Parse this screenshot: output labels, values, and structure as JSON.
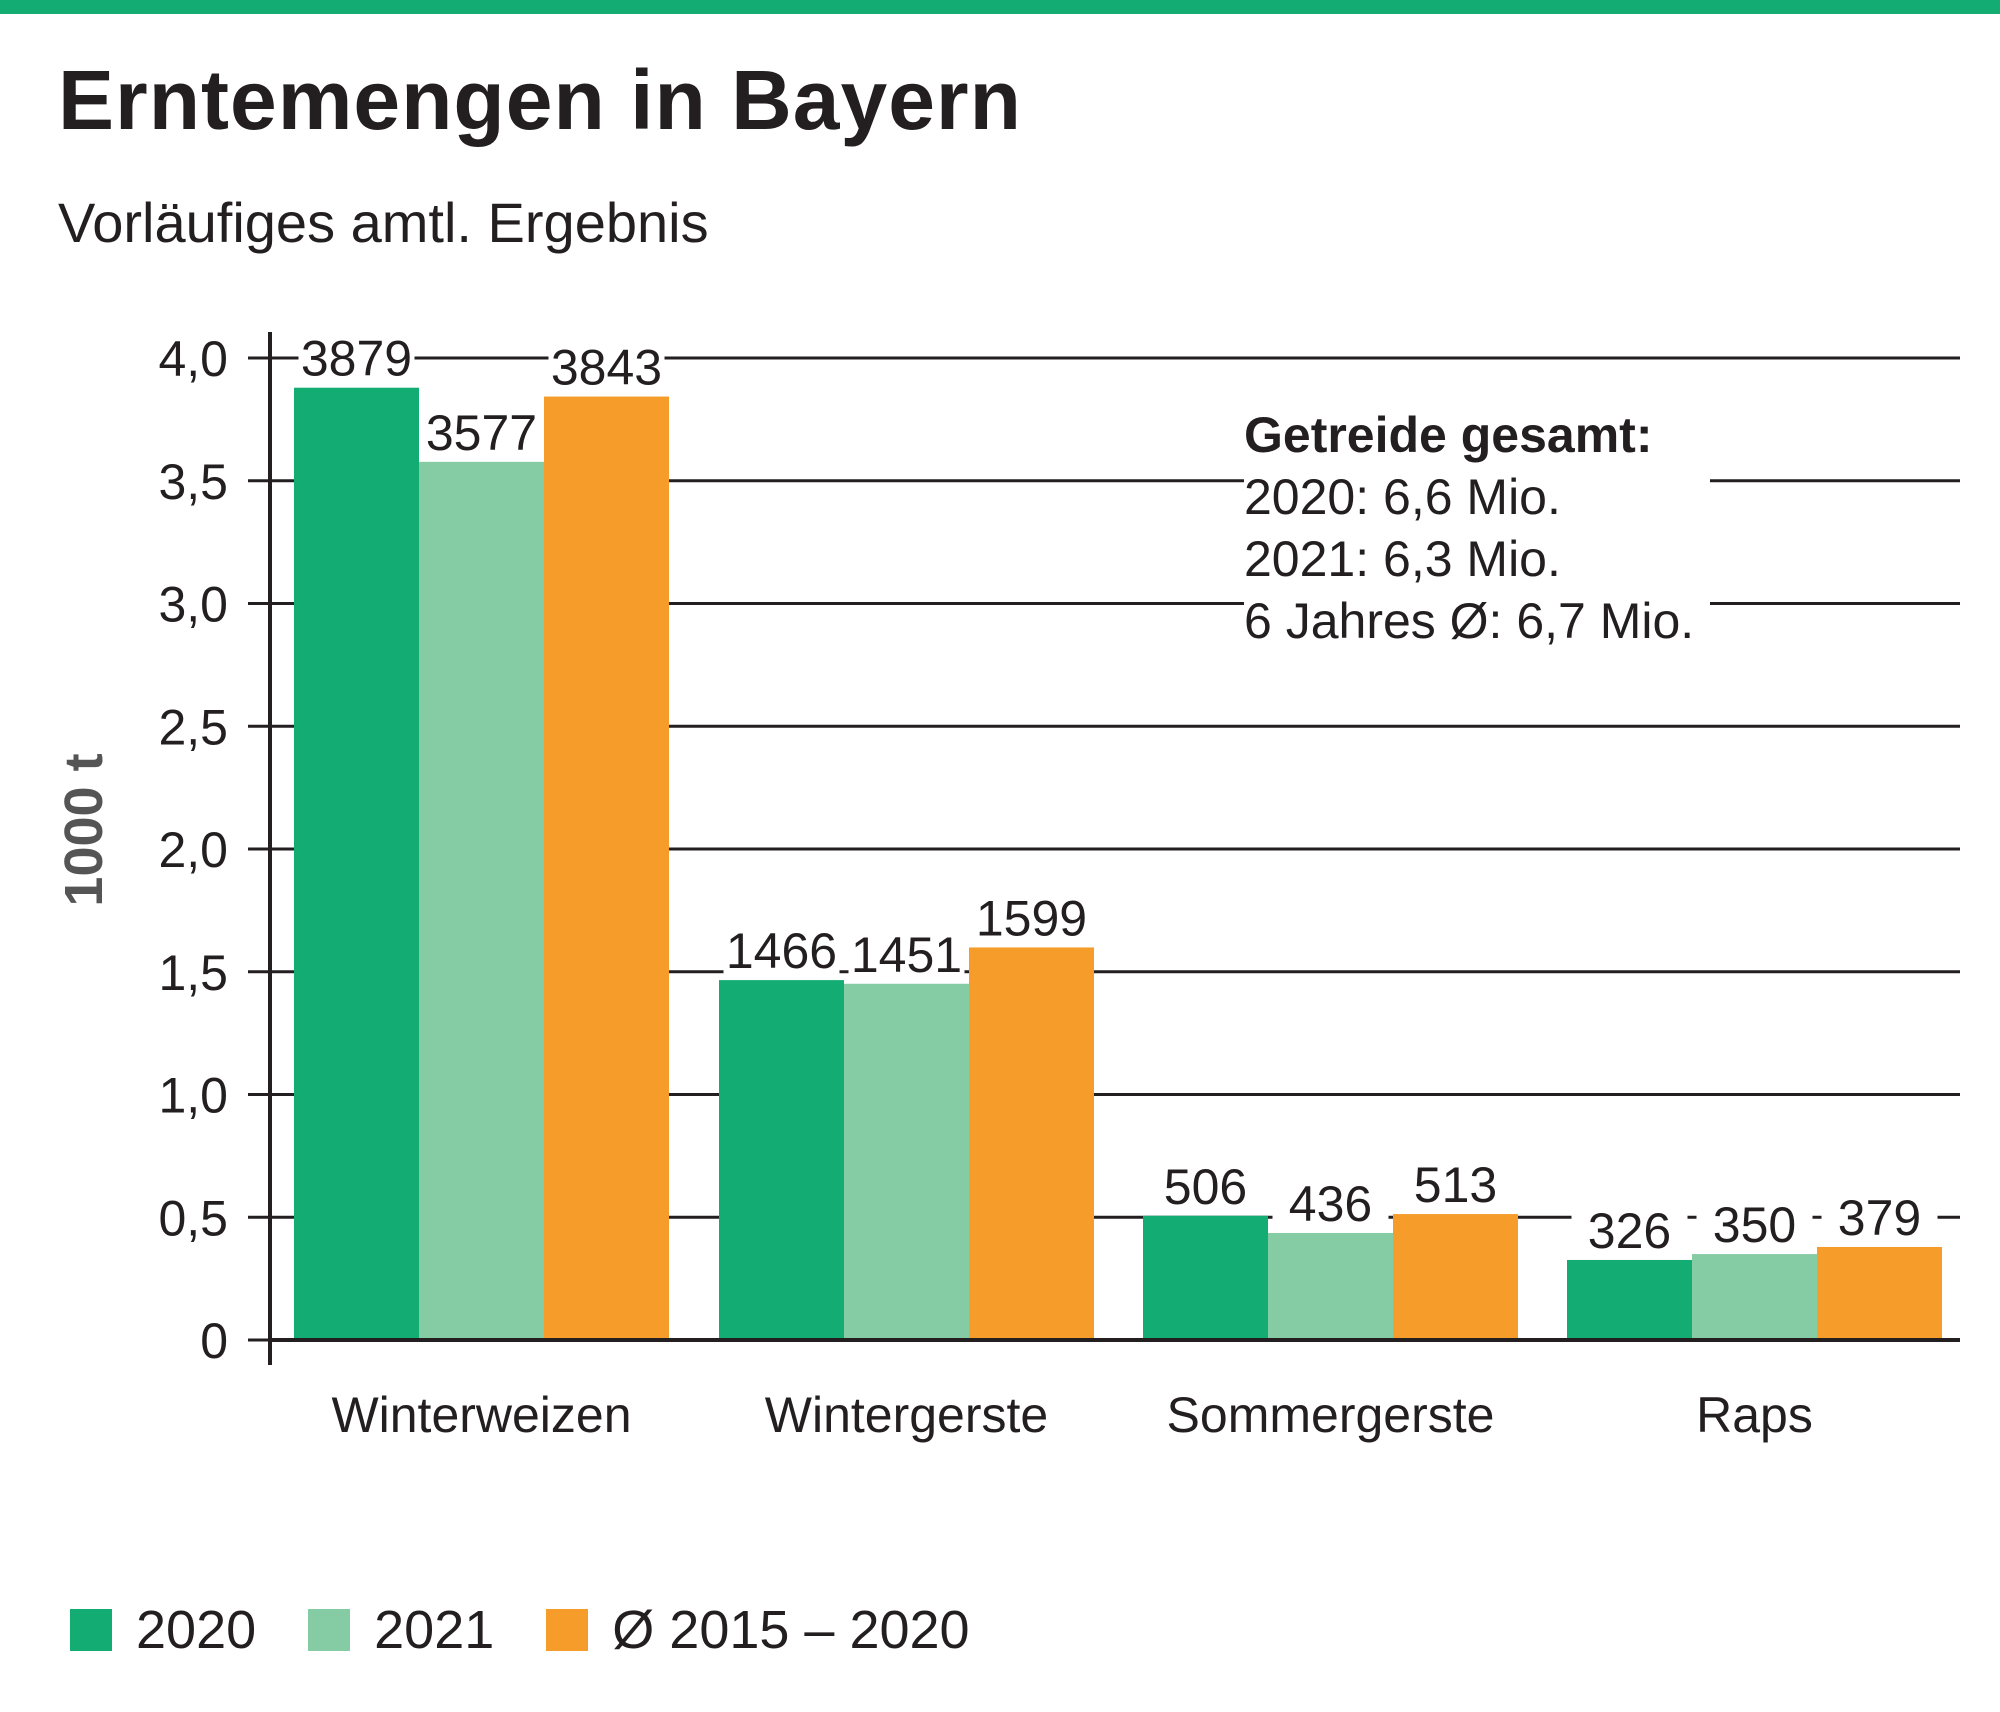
{
  "header": {
    "title": "Erntemengen in Bayern",
    "subtitle": "Vorläufiges amtl. Ergebnis"
  },
  "colors": {
    "accent": "#13ac72",
    "series_2020": "#13ac72",
    "series_2021": "#85cca5",
    "series_avg": "#f59c2a",
    "text": "#231f20"
  },
  "note": {
    "title": "Getreide gesamt:",
    "lines": [
      "2020: 6,6 Mio.",
      "2021: 6,3 Mio.",
      "6 Jahres Ø: 6,7 Mio."
    ]
  },
  "chart_data": {
    "type": "bar",
    "title": "Erntemengen in Bayern",
    "subtitle": "Vorläufiges amtl. Ergebnis",
    "xlabel": "",
    "ylabel": "1000 t",
    "ylim": [
      0,
      4.0
    ],
    "value_scale_note": "bar values in 1000 t; axis ticks in thousands of that unit",
    "y_ticks": [
      {
        "value": 0,
        "label": "0"
      },
      {
        "value": 0.5,
        "label": "0,5"
      },
      {
        "value": 1.0,
        "label": "1,0"
      },
      {
        "value": 1.5,
        "label": "1,5"
      },
      {
        "value": 2.0,
        "label": "2,0"
      },
      {
        "value": 2.5,
        "label": "2,5"
      },
      {
        "value": 3.0,
        "label": "3,0"
      },
      {
        "value": 3.5,
        "label": "3,5"
      },
      {
        "value": 4.0,
        "label": "4,0"
      }
    ],
    "categories": [
      "Winterweizen",
      "Wintergerste",
      "Sommergerste",
      "Raps"
    ],
    "series": [
      {
        "name": "2020",
        "color": "#13ac72",
        "values": [
          3879,
          1466,
          506,
          326
        ],
        "labels": [
          "3879",
          "1466",
          "506",
          "326"
        ]
      },
      {
        "name": "2021",
        "color": "#85cca5",
        "values": [
          3577,
          1451,
          436,
          350
        ],
        "labels": [
          "3577",
          "1451",
          "436",
          "350"
        ]
      },
      {
        "name": "Ø 2015 – 2020",
        "color": "#f59c2a",
        "values": [
          3843,
          1599,
          513,
          379
        ],
        "labels": [
          "3843",
          "1599",
          "513",
          "379"
        ]
      }
    ],
    "grid": true,
    "legend": "bottom-left"
  }
}
